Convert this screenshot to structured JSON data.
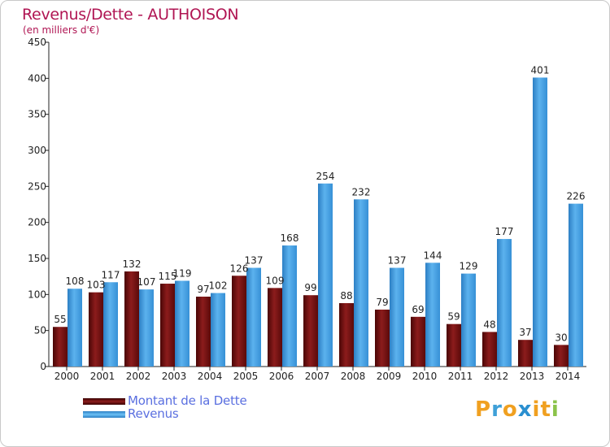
{
  "title": "Revenus/Dette - AUTHOISON",
  "subtitle": "(en milliers d'€)",
  "colors": {
    "dette": "#7a1414",
    "revenus": "#3b97dc",
    "title": "#b01553",
    "legend_text": "#5a6fe0"
  },
  "legend": {
    "dette": "Montant de la Dette",
    "revenus": "Revenus"
  },
  "logo": {
    "letters": [
      "P",
      "r",
      "o",
      "x",
      "i",
      "t",
      "i"
    ],
    "colors": [
      "#f0a020",
      "#3fa0d8",
      "#f0a020",
      "#2a8fd0",
      "#f0a020",
      "#f0a020",
      "#8bc34a"
    ]
  },
  "chart_data": {
    "type": "bar",
    "categories": [
      "2000",
      "2001",
      "2002",
      "2003",
      "2004",
      "2005",
      "2006",
      "2007",
      "2008",
      "2009",
      "2010",
      "2011",
      "2012",
      "2013",
      "2014"
    ],
    "series": [
      {
        "name": "Montant de la Dette",
        "values": [
          55,
          103,
          132,
          115,
          97,
          126,
          109,
          99,
          88,
          79,
          69,
          59,
          48,
          37,
          30
        ]
      },
      {
        "name": "Revenus",
        "values": [
          108,
          117,
          107,
          119,
          102,
          137,
          168,
          254,
          232,
          137,
          144,
          129,
          177,
          401,
          226
        ]
      }
    ],
    "ylim": [
      0,
      450
    ],
    "yticks": [
      0,
      50,
      100,
      150,
      200,
      250,
      300,
      350,
      400,
      450
    ],
    "grid": false,
    "legend_position": "bottom-left"
  }
}
